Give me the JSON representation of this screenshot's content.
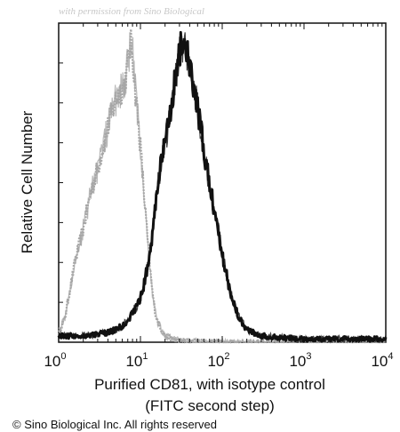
{
  "watermark": "with permission from Sino Biological",
  "copyright": "© Sino Biological Inc. All rights reserved",
  "chart_data": {
    "type": "area",
    "xscale": "log",
    "xlim": [
      1,
      10000
    ],
    "ylim": [
      0,
      100
    ],
    "xlabel": [
      "Purified CD81, with isotype control",
      "(FITC second step)"
    ],
    "ylabel": "Relative Cell Number",
    "x_ticks": [
      {
        "base": "10",
        "exp": "0",
        "value": 1
      },
      {
        "base": "10",
        "exp": "1",
        "value": 10
      },
      {
        "base": "10",
        "exp": "2",
        "value": 100
      },
      {
        "base": "10",
        "exp": "3",
        "value": 1000
      },
      {
        "base": "10",
        "exp": "4",
        "value": 10000
      }
    ],
    "series": [
      {
        "color": "#a6a6a6",
        "x": [
          1.0,
          1.2,
          1.4,
          1.6,
          2.0,
          2.5,
          3.0,
          3.5,
          4.0,
          4.5,
          5.0,
          5.5,
          6.0,
          6.5,
          7.0,
          7.5,
          8.0,
          8.5,
          9.0,
          10,
          11,
          12,
          13,
          14,
          15,
          16,
          18,
          20,
          25,
          30,
          40,
          60,
          100,
          1000,
          10000
        ],
        "y": [
          3,
          8,
          18,
          26,
          36,
          48,
          55,
          62,
          68,
          73,
          77,
          79,
          80,
          83,
          88,
          95,
          92,
          82,
          75,
          62,
          48,
          35,
          24,
          16,
          10,
          7,
          4,
          2,
          1,
          0.5,
          0.3,
          0.2,
          0,
          0,
          0
        ]
      },
      {
        "color": "#111111",
        "x": [
          1.0,
          2.0,
          4.0,
          6.0,
          8.0,
          10,
          11,
          12,
          13,
          14,
          15,
          16,
          17,
          18,
          20,
          22,
          24,
          26,
          28,
          30,
          32,
          35,
          38,
          40,
          42,
          45,
          50,
          55,
          60,
          70,
          80,
          90,
          100,
          110,
          120,
          140,
          160,
          200,
          300,
          500,
          1000,
          10000
        ],
        "y": [
          2,
          2,
          3,
          5,
          9,
          14,
          18,
          23,
          28,
          34,
          42,
          48,
          53,
          57,
          63,
          70,
          76,
          82,
          87,
          92,
          94,
          95,
          90,
          87,
          84,
          80,
          74,
          67,
          60,
          50,
          42,
          35,
          28,
          23,
          18,
          12,
          8,
          4,
          2,
          1.5,
          1,
          1
        ]
      }
    ]
  }
}
